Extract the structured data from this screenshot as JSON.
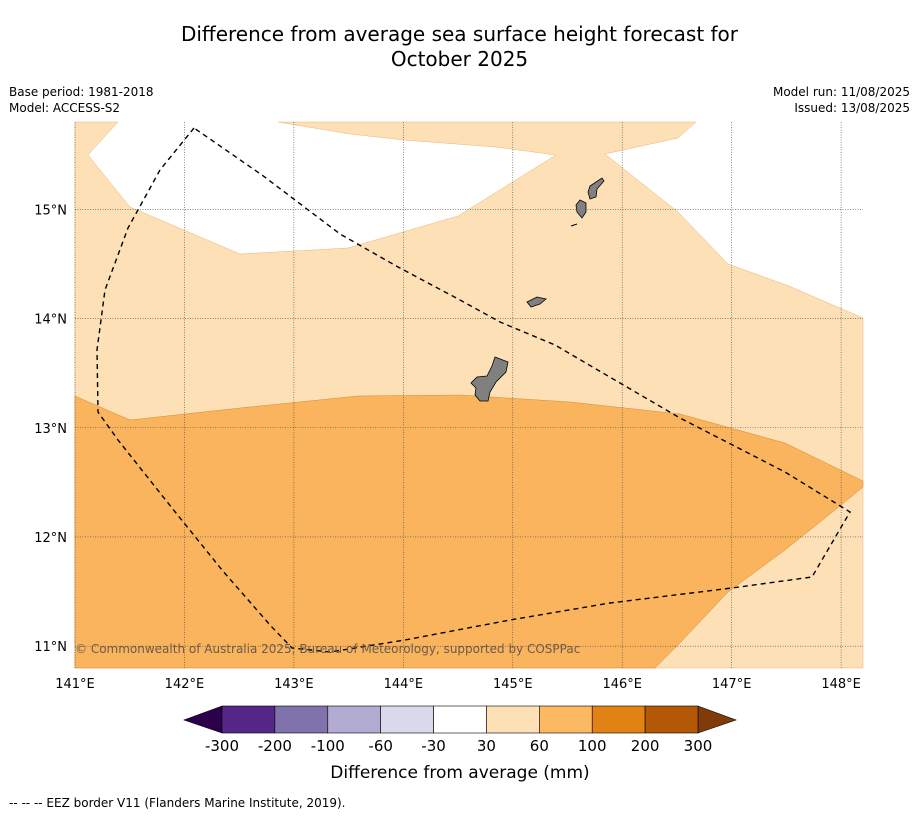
{
  "title_line1": "Difference from average sea surface height forecast for",
  "title_line2": "October 2025",
  "meta_left": {
    "base_period": "Base period: 1981-2018",
    "model": "Model: ACCESS-S2"
  },
  "meta_right": {
    "model_run": "Model run: 11/08/2025",
    "issued": "Issued: 13/08/2025"
  },
  "map": {
    "lon_range": [
      141.0,
      148.2
    ],
    "lat_range": [
      10.8,
      15.8
    ],
    "lon_ticks": [
      141,
      142,
      143,
      144,
      145,
      146,
      147,
      148
    ],
    "lon_tick_labels": [
      "141°E",
      "142°E",
      "143°E",
      "144°E",
      "145°E",
      "146°E",
      "147°E",
      "148°E"
    ],
    "lat_ticks": [
      11,
      12,
      13,
      14,
      15
    ],
    "lat_tick_labels": [
      "11°N",
      "12°N",
      "13°N",
      "14°N",
      "15°N"
    ],
    "grid": true,
    "copyright": "© Commonwealth of Australia 2025, Bureau of Meteorology, supported by COSPPac",
    "colors": {
      "band_30_60": "#fde0b6",
      "band_60_100": "#fab45d",
      "land": "#808080",
      "ocean_neutral": "#ffffff"
    }
  },
  "colorbar": {
    "title": "Difference from average (mm)",
    "tick_labels": [
      "-300",
      "-200",
      "-100",
      "-60",
      "-30",
      "30",
      "60",
      "100",
      "200",
      "300"
    ],
    "colors": [
      "#542788",
      "#8073ac",
      "#b2abd2",
      "#d8daeb",
      "#ffffff",
      "#fee0b6",
      "#fdb863",
      "#e08214",
      "#b35806"
    ],
    "extend_low": "#2d004b",
    "extend_high": "#7f3b08"
  },
  "footer": "--  --  -- EEZ border V11 (Flanders Marine Institute, 2019)."
}
